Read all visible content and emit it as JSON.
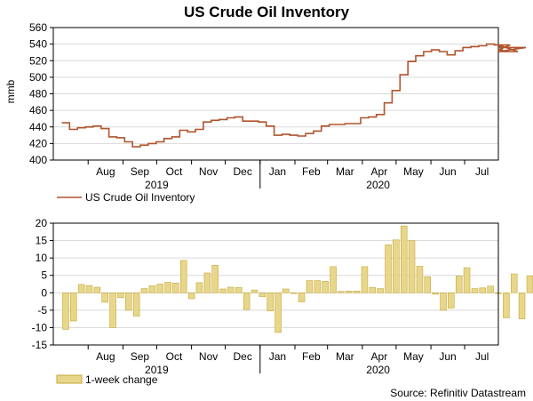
{
  "title": "US Crude Oil Inventory",
  "source": "Source: Refinitiv Datastream",
  "colors": {
    "inventory_line": "#b0542c",
    "change_fill": "#e8d68a",
    "change_stroke": "#c4a93a",
    "grid": "#d9d9d9",
    "axis": "#000000"
  },
  "months": [
    "Aug",
    "Sep",
    "Oct",
    "Nov",
    "Dec",
    "Jan",
    "Feb",
    "Mar",
    "Apr",
    "May",
    "Jun",
    "Jul"
  ],
  "years": [
    "2019",
    "2020"
  ],
  "chart_data": [
    {
      "type": "line",
      "title": "US Crude Oil Inventory",
      "ylabel": "mmb",
      "ylim": [
        400,
        560
      ],
      "yticks": [
        400,
        420,
        440,
        460,
        480,
        500,
        520,
        540,
        560
      ],
      "x_start": "2019-07-12",
      "x_step_weeks": 1,
      "legend": "US Crude Oil Inventory",
      "series": [
        {
          "name": "US Crude Oil Inventory",
          "values": [
            445,
            437,
            439,
            440,
            441,
            438,
            428,
            427,
            422,
            416,
            418,
            420,
            422,
            426,
            428,
            436,
            434,
            437,
            446,
            448,
            449,
            451,
            452,
            447,
            447,
            446,
            441,
            430,
            431,
            430,
            429,
            432,
            435,
            441,
            443,
            443,
            444,
            444,
            451,
            452,
            455,
            469,
            484,
            503,
            519,
            526,
            531,
            533,
            531,
            527,
            532,
            536,
            537,
            538,
            540,
            539,
            533,
            539,
            531,
            536
          ]
        }
      ]
    },
    {
      "type": "bar",
      "title": "",
      "ylabel": "",
      "ylim": [
        -15,
        20
      ],
      "yticks": [
        -15,
        -10,
        -5,
        0,
        5,
        10,
        15,
        20
      ],
      "x_start": "2019-07-12",
      "x_step_weeks": 1,
      "legend": "1-week change",
      "series": [
        {
          "name": "1-week change",
          "values": [
            -10.5,
            -8.1,
            2.4,
            2.1,
            1.6,
            -2.7,
            -10.0,
            -1.4,
            -5.0,
            -6.7,
            1.2,
            2.0,
            2.5,
            3.0,
            2.8,
            9.3,
            -1.7,
            2.9,
            5.7,
            7.9,
            1.1,
            1.6,
            1.5,
            -4.8,
            0.8,
            -1.1,
            -5.2,
            -11.4,
            1.1,
            -0.2,
            -2.6,
            3.5,
            3.5,
            3.3,
            7.5,
            0.4,
            0.5,
            0.5,
            7.5,
            1.5,
            1.2,
            13.8,
            15.2,
            19.2,
            15.0,
            7.6,
            4.6,
            -0.4,
            -5.0,
            -4.4,
            4.8,
            7.2,
            1.2,
            1.4,
            1.9,
            -0.1,
            -7.2,
            5.4,
            -7.5,
            4.9
          ]
        }
      ]
    }
  ]
}
